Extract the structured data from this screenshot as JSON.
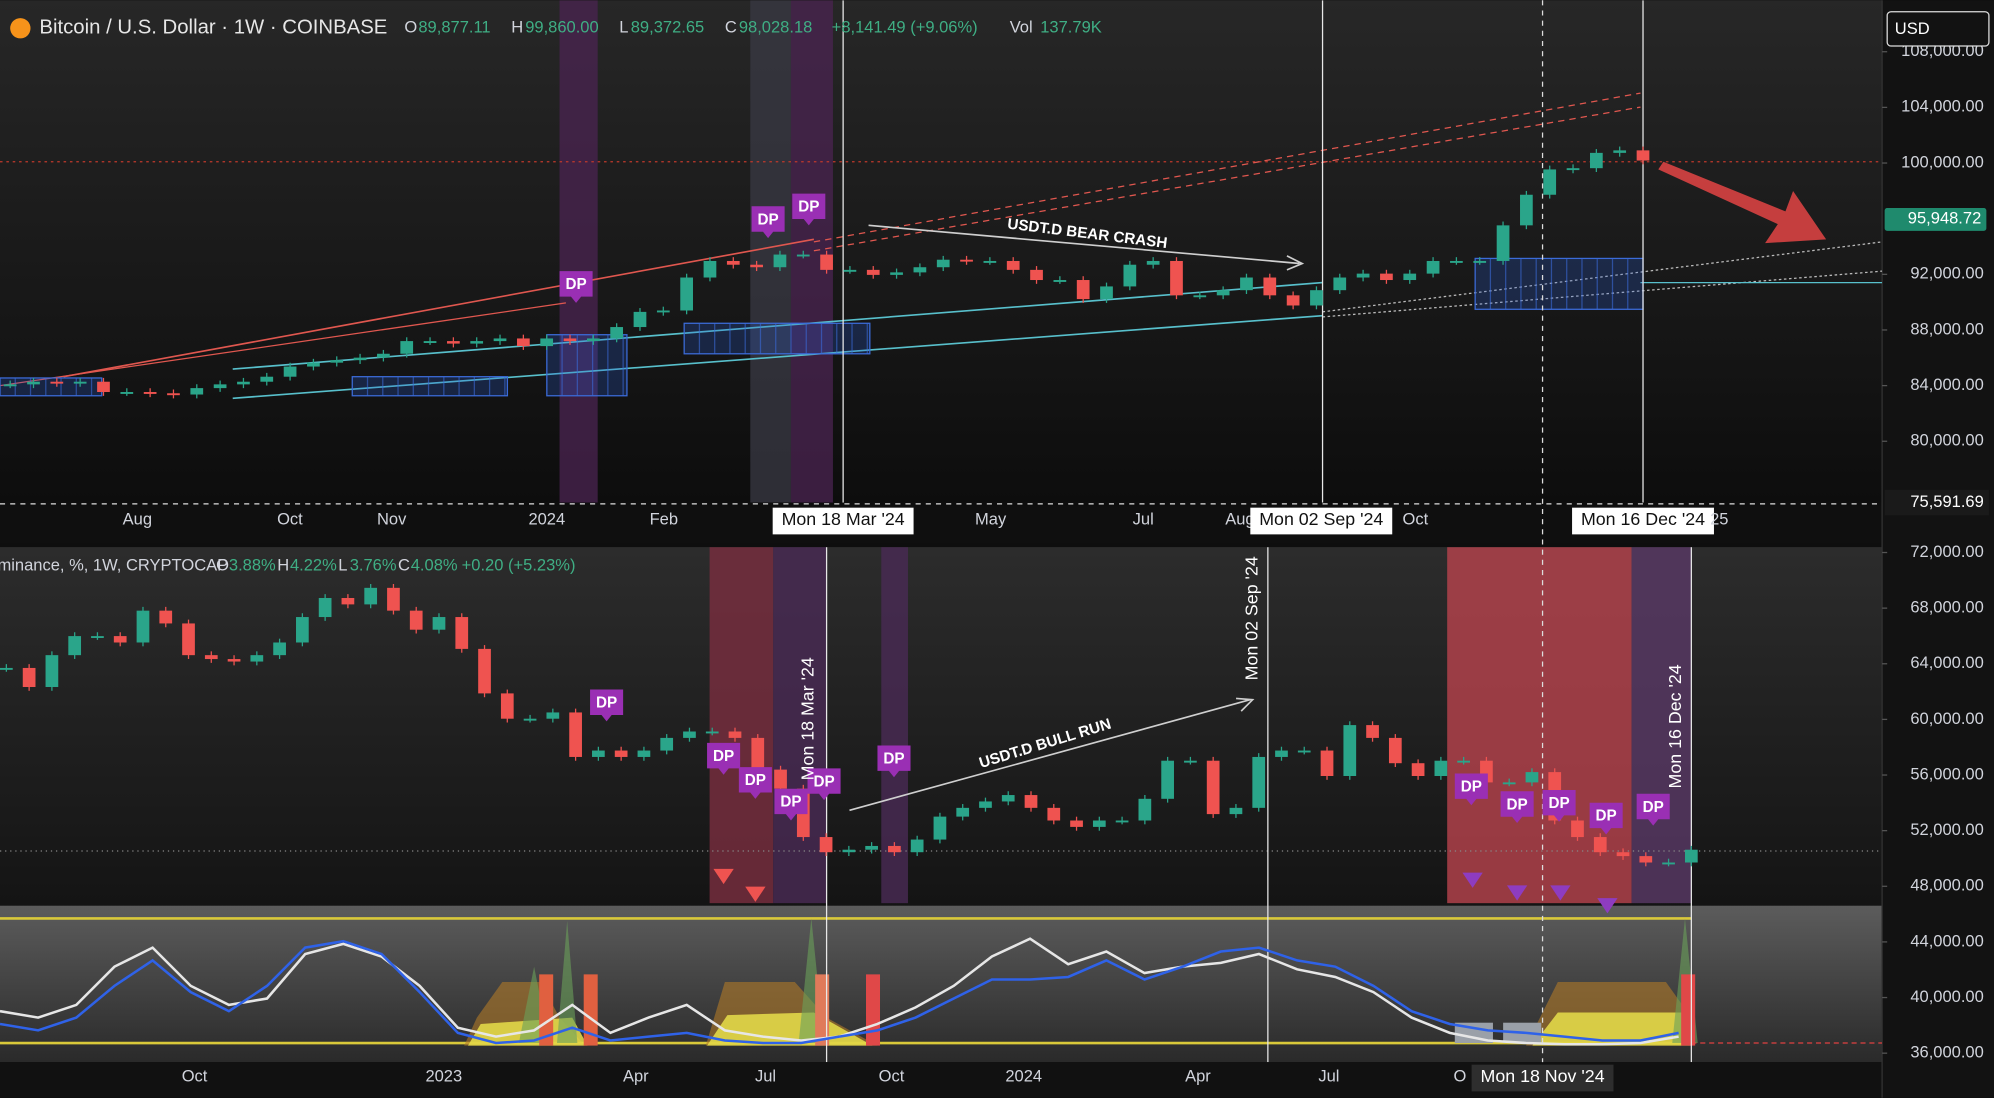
{
  "ui": {
    "currency": "USD"
  },
  "chart_data": [
    {
      "type": "candlestick",
      "title": "Bitcoin / U.S. Dollar · 1W · COINBASE",
      "ohlc": [
        {
          "key": "O",
          "value": "89,877.11"
        },
        {
          "key": "H",
          "value": "99,860.00"
        },
        {
          "key": "L",
          "value": "89,372.65"
        },
        {
          "key": "C",
          "value": "98,028.18"
        }
      ],
      "change": "+8,141.49 (+9.06%)",
      "volume": {
        "key": "Vol",
        "value": "137.79K"
      },
      "ylim": [
        75591.69,
        111700
      ],
      "yticks": [
        {
          "value": 108000,
          "label": "108,000.00"
        },
        {
          "value": 104000,
          "label": "104,000.00"
        },
        {
          "value": 100000,
          "label": "100,000.00"
        },
        {
          "value": 92000,
          "label": "92,000.00"
        },
        {
          "value": 88000,
          "label": "88,000.00"
        },
        {
          "value": 84000,
          "label": "84,000.00"
        },
        {
          "value": 80000,
          "label": "80,000.00"
        }
      ],
      "last_price": {
        "value": 95948.72,
        "label": "95,948.72"
      },
      "crosshair_price": {
        "value": 75591.69,
        "label": "75,591.69"
      },
      "x_labels": [
        "Aug",
        "Oct",
        "Nov",
        "2024",
        "Feb",
        "Mon 18 Mar '24",
        "May",
        "Jul",
        "Aug",
        "Mon 02 Sep '24",
        "Oct",
        "Mon 16 Dec '24",
        "25"
      ],
      "closes": [
        84090,
        84280,
        84190,
        84280,
        83540,
        83540,
        83450,
        83360,
        83820,
        84090,
        84280,
        84640,
        85370,
        85650,
        85830,
        86010,
        86290,
        87200,
        87200,
        87020,
        87200,
        87390,
        86840,
        87390,
        87200,
        87390,
        88210,
        89300,
        89400,
        91770,
        92960,
        92690,
        92510,
        93420,
        93420,
        92320,
        92320,
        91960,
        92140,
        92510,
        93050,
        92960,
        92960,
        92320,
        91590,
        91590,
        90220,
        91130,
        92690,
        92960,
        90490,
        90490,
        90860,
        91770,
        90490,
        89760,
        90860,
        91770,
        92050,
        91590,
        92050,
        92960,
        92960,
        92960,
        95520,
        97720,
        99540,
        99630,
        100730,
        100910,
        100180
      ],
      "annotations": [
        "USDT.D BEAR CRASH"
      ],
      "markers": [
        "DP",
        "DP",
        "DP"
      ]
    },
    {
      "type": "candlestick",
      "title": "minance, %, 1W, CRYPTOCAP",
      "ohlc": [
        {
          "key": "O",
          "value": "3.88%"
        },
        {
          "key": "H",
          "value": "4.22%"
        },
        {
          "key": "L",
          "value": "3.76%"
        },
        {
          "key": "C",
          "value": "4.08%"
        }
      ],
      "change": "+0.20 (+5.23%)",
      "ylim": [
        33070,
        72390
      ],
      "yticks": [
        {
          "value": 72000,
          "label": "72,000.00"
        },
        {
          "value": 68000,
          "label": "68,000.00"
        },
        {
          "value": 64000,
          "label": "64,000.00"
        },
        {
          "value": 60000,
          "label": "60,000.00"
        },
        {
          "value": 56000,
          "label": "56,000.00"
        },
        {
          "value": 52000,
          "label": "52,000.00"
        },
        {
          "value": 48000,
          "label": "48,000.00"
        },
        {
          "value": 44000,
          "label": "44,000.00"
        },
        {
          "value": 40000,
          "label": "40,000.00"
        },
        {
          "value": 36000,
          "label": "36,000.00"
        }
      ],
      "x_labels": [
        "Oct",
        "2023",
        "Apr",
        "Jul",
        "Oct",
        "2024",
        "Apr",
        "Jul",
        "O",
        "Mon 18 Nov '24"
      ],
      "closes": [
        63700,
        62330,
        64620,
        65990,
        65990,
        65530,
        67820,
        66900,
        64620,
        64340,
        64160,
        64620,
        65530,
        67360,
        68730,
        68270,
        69460,
        67820,
        66450,
        67360,
        65070,
        61870,
        60050,
        60050,
        60500,
        57300,
        57760,
        57300,
        57760,
        58670,
        59130,
        59130,
        58670,
        56390,
        55020,
        51540,
        50450,
        50630,
        50900,
        50450,
        51360,
        53010,
        53640,
        54100,
        54560,
        53640,
        52730,
        52270,
        52730,
        52730,
        54290,
        57030,
        57030,
        53190,
        53640,
        57300,
        57760,
        57760,
        55930,
        59590,
        58670,
        56850,
        55930,
        57030,
        57030,
        55470,
        55470,
        56210,
        52730,
        51540,
        50450,
        50170,
        49710,
        49710,
        50630
      ],
      "annotations": [
        "USDT.D BULL RUN",
        "Mon 18 Mar '24",
        "Mon 02 Sep '24",
        "Mon 16 Dec '24"
      ],
      "markers": [
        "DP",
        "DP",
        "DP",
        "DP",
        "DP",
        "DP",
        "DP",
        "DP",
        "DP",
        "DP",
        "DP"
      ],
      "oscillator": {
        "type": "line",
        "series": [
          {
            "color": "#e6e6e6",
            "values": [
              39020,
              38560,
              39470,
              42220,
              43590,
              40840,
              39470,
              39930,
              43130,
              43860,
              42950,
              40840,
              37830,
              37190,
              37640,
              39470,
              37460,
              38560,
              39470,
              37640,
              37190,
              36910,
              37190,
              38100,
              39290,
              40840,
              42950,
              44230,
              42400,
              43310,
              41760,
              42220,
              42490,
              43130,
              42030,
              41480,
              40390,
              38560,
              37460,
              36910,
              36730,
              36640,
              36640,
              36730,
              37190
            ]
          },
          {
            "color": "#2f62e8",
            "values": [
              38100,
              37640,
              38560,
              40840,
              42670,
              40390,
              39020,
              40840,
              43590,
              44050,
              43130,
              40390,
              37460,
              36730,
              36910,
              37830,
              36910,
              37190,
              37460,
              36910,
              36730,
              36730,
              37190,
              37640,
              38560,
              39930,
              41300,
              41300,
              41480,
              42670,
              41300,
              42220,
              43310,
              43590,
              42670,
              42220,
              40840,
              39020,
              38100,
              37640,
              37460,
              37190,
              36910,
              36910,
              37460
            ]
          }
        ]
      }
    }
  ]
}
